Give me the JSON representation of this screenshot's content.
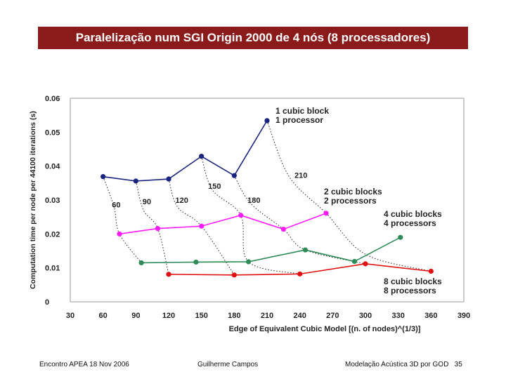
{
  "slide_title": "Paralelização num SGI Origin 2000 de 4 nós (8 processadores)",
  "footer": {
    "left": "Encontro APEA 18 Nov 2006",
    "middle": "Guilherme Campos",
    "right": "Modelação Acústica 3D por GOD",
    "page_number": "35"
  },
  "chart_data": {
    "type": "line",
    "title": "",
    "xlabel": "Edge of Equivalent Cubic Model  [(n. of nodes)^(1/3)]",
    "ylabel": "Computation time per node per 44100 iterations (s)",
    "xlim": [
      30,
      390
    ],
    "ylim": [
      0,
      0.06
    ],
    "x_ticks": [
      30,
      60,
      90,
      120,
      150,
      180,
      210,
      240,
      270,
      300,
      330,
      360,
      390
    ],
    "y_ticks": [
      {
        "value": 0,
        "label": "0"
      },
      {
        "value": 0.01,
        "label": "0.01"
      },
      {
        "value": 0.02,
        "label": "0.02"
      },
      {
        "value": 0.03,
        "label": "0.03"
      },
      {
        "value": 0.04,
        "label": "0.04"
      },
      {
        "value": 0.05,
        "label": "0.05"
      },
      {
        "value": 0.06,
        "label": "0.06"
      }
    ],
    "grid": false,
    "series": [
      {
        "name": "1 cubic block 1 processor",
        "label_lines": [
          "1 cubic block",
          "1 processor"
        ],
        "color": "#1a237e",
        "points": [
          [
            60,
            0.0369
          ],
          [
            90,
            0.0356
          ],
          [
            120,
            0.0362
          ],
          [
            150,
            0.0429
          ],
          [
            180,
            0.0372
          ],
          [
            210,
            0.0534
          ]
        ]
      },
      {
        "name": "2 cubic blocks 2 processors",
        "label_lines": [
          "2 cubic blocks",
          "2 processors"
        ],
        "color": "#ff1aff",
        "points": [
          [
            75,
            0.02
          ],
          [
            110,
            0.0216
          ],
          [
            150,
            0.0223
          ],
          [
            186,
            0.0255
          ],
          [
            225,
            0.0214
          ],
          [
            264,
            0.0261
          ]
        ]
      },
      {
        "name": "4 cubic blocks 4 processors",
        "label_lines": [
          "4 cubic blocks",
          "4 processors"
        ],
        "color": "#2e8b57",
        "points": [
          [
            95,
            0.0115
          ],
          [
            145,
            0.0117
          ],
          [
            193,
            0.0118
          ],
          [
            245,
            0.0153
          ],
          [
            290,
            0.0119
          ],
          [
            332,
            0.019
          ]
        ]
      },
      {
        "name": "8 cubic blocks 8 processors",
        "label_lines": [
          "8 cubic blocks",
          "8 processors"
        ],
        "color": "#e01010",
        "points": [
          [
            120,
            0.0081
          ],
          [
            180,
            0.0079
          ],
          [
            240,
            0.0082
          ],
          [
            300,
            0.0112
          ],
          [
            360,
            0.009
          ]
        ]
      }
    ],
    "size_contours": [
      {
        "label": "60",
        "points": [
          [
            60,
            0.0369
          ],
          [
            70,
            0.028
          ],
          [
            75,
            0.02
          ],
          [
            95,
            0.0115
          ]
        ]
      },
      {
        "label": "90",
        "points": [
          [
            90,
            0.0356
          ],
          [
            97,
            0.027
          ],
          [
            110,
            0.0216
          ],
          [
            120,
            0.0081
          ]
        ]
      },
      {
        "label": "120",
        "points": [
          [
            120,
            0.0362
          ],
          [
            128,
            0.028
          ],
          [
            150,
            0.0223
          ],
          [
            180,
            0.0079
          ]
        ]
      },
      {
        "label": "150",
        "points": [
          [
            150,
            0.0429
          ],
          [
            160,
            0.033
          ],
          [
            186,
            0.0255
          ],
          [
            193,
            0.0118
          ],
          [
            240,
            0.0082
          ]
        ]
      },
      {
        "label": "180",
        "points": [
          [
            180,
            0.0372
          ],
          [
            195,
            0.029
          ],
          [
            225,
            0.0214
          ],
          [
            245,
            0.0153
          ],
          [
            300,
            0.0112
          ]
        ]
      },
      {
        "label": "210",
        "points": [
          [
            210,
            0.0534
          ],
          [
            230,
            0.037
          ],
          [
            264,
            0.0261
          ],
          [
            300,
            0.014
          ],
          [
            360,
            0.009
          ]
        ]
      }
    ],
    "annotations": [
      {
        "text": "60",
        "x": 72,
        "y": 0.0278
      },
      {
        "text": "90",
        "x": 100,
        "y": 0.0288
      },
      {
        "text": "120",
        "x": 132,
        "y": 0.0292
      },
      {
        "text": "150",
        "x": 162,
        "y": 0.0333
      },
      {
        "text": "180",
        "x": 198,
        "y": 0.0292
      },
      {
        "text": "210",
        "x": 241,
        "y": 0.0365
      }
    ]
  }
}
